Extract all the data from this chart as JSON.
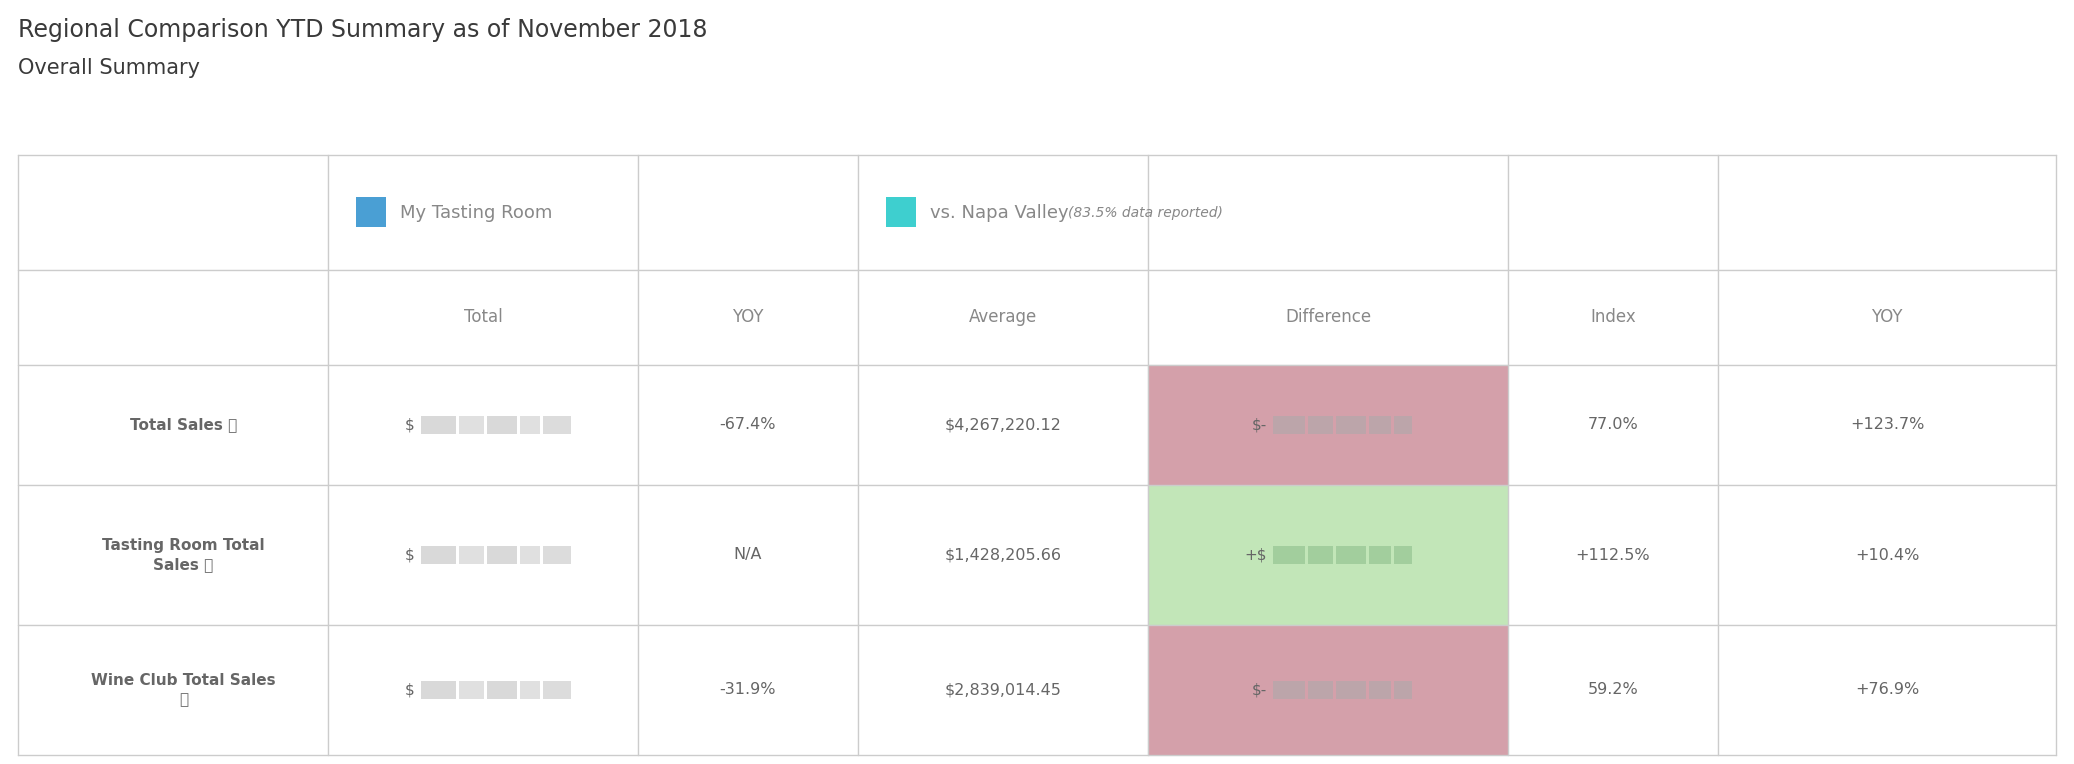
{
  "title": "Regional Comparison YTD Summary as of November 2018",
  "subtitle": "Overall Summary",
  "bg_color": "#ffffff",
  "title_color": "#3a3a3a",
  "subtitle_color": "#3a3a3a",
  "title_fontsize": 17,
  "subtitle_fontsize": 15,
  "table_border_color": "#cccccc",
  "header_text_color": "#888888",
  "cell_text_color": "#666666",
  "row_label_color": "#666666",
  "my_tasting_room_color": "#4a9fd4",
  "napa_valley_color": "#3ecfcf",
  "diff_negative_bg": "#d4a0aa",
  "diff_positive_bg": "#c2e6b8",
  "group_header_napa_label": "vs. Napa Valley",
  "group_header_napa_italic": "(83.5% data reported)",
  "group_header_mtr": "My Tasting Room",
  "col_headers": [
    "Total",
    "YOY",
    "Average",
    "Difference",
    "Index",
    "YOY"
  ],
  "rows": [
    {
      "label": "Total Sales ⓘ",
      "label_multiline": false,
      "yoy1": "-67.4%",
      "average": "$4,267,220.12",
      "diff_prefix": "$-",
      "diff_bg": "#d4a0aa",
      "index": "77.0%",
      "yoy2": "+123.7%"
    },
    {
      "label": "Tasting Room Total\nSales ⓘ",
      "label_multiline": true,
      "yoy1": "N/A",
      "average": "$1,428,205.66",
      "diff_prefix": "+$",
      "diff_bg": "#c2e6b8",
      "index": "+112.5%",
      "yoy2": "+10.4%"
    },
    {
      "label": "Wine Club Total Sales\nⓘ",
      "label_multiline": true,
      "yoy1": "-31.9%",
      "average": "$2,839,014.45",
      "diff_prefix": "$-",
      "diff_bg": "#d4a0aa",
      "index": "59.2%",
      "yoy2": "+76.9%"
    }
  ],
  "figsize": [
    20.74,
    7.64
  ],
  "dpi": 100
}
